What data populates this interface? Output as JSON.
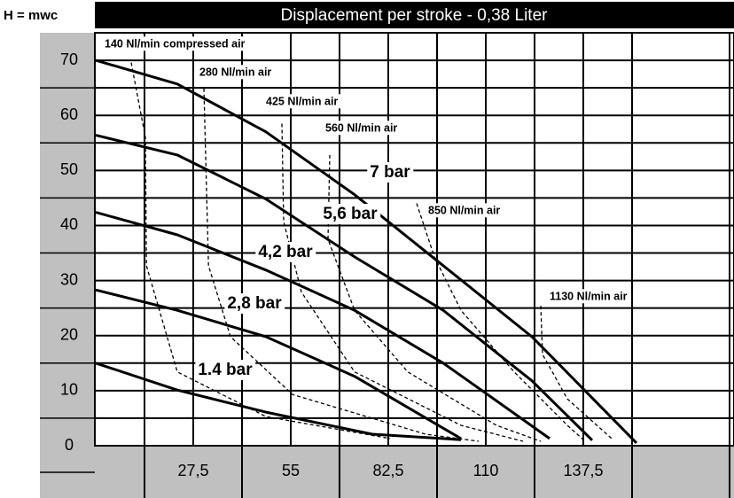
{
  "chart_data": {
    "type": "line",
    "title": "Displacement per stroke - 0,38 Liter",
    "y_label": "H = mwc",
    "xlim": [
      0,
      180
    ],
    "ylim": [
      0,
      75
    ],
    "xticks": [
      {
        "value": 27.5,
        "label": "27,5"
      },
      55,
      {
        "value": 82.5,
        "label": "82,5"
      },
      110,
      {
        "value": 137.5,
        "label": "137,5"
      }
    ],
    "yticks": [
      0,
      10,
      20,
      30,
      40,
      50,
      60,
      70
    ],
    "grid": true,
    "series": [
      {
        "name": "7 bar",
        "style": "solid",
        "color": "#000000",
        "x": [
          0,
          23,
          48,
          73,
          98,
          123,
          138,
          152.5
        ],
        "values": [
          70,
          65.7,
          57,
          45.6,
          32.7,
          19.8,
          10,
          0.5
        ]
      },
      {
        "name": "5,6 bar",
        "style": "solid",
        "color": "#000000",
        "x": [
          0,
          23,
          48,
          73,
          98,
          123,
          140
        ],
        "values": [
          56.4,
          52.8,
          44.8,
          34.3,
          24.6,
          11.8,
          1
        ]
      },
      {
        "name": "4,2 bar",
        "style": "solid",
        "color": "#000000",
        "x": [
          0,
          23,
          48,
          73,
          98,
          128
        ],
        "values": [
          42.4,
          38.3,
          31.9,
          24.6,
          15,
          1.3
        ]
      },
      {
        "name": "2,8 bar",
        "style": "solid",
        "color": "#000000",
        "x": [
          0,
          23,
          48,
          73,
          103
        ],
        "values": [
          28.3,
          24.6,
          19.8,
          12.6,
          1.3
        ]
      },
      {
        "name": "1.4 bar",
        "style": "solid",
        "color": "#000000",
        "x": [
          0,
          23,
          48,
          78,
          103
        ],
        "values": [
          15,
          10.1,
          6.1,
          2.1,
          1.1
        ]
      },
      {
        "name": "140 Nl/min compressed air",
        "style": "dashed",
        "color": "#000000",
        "x": [
          10,
          14,
          14.3,
          23,
          48,
          83
        ],
        "values": [
          69.6,
          56,
          32.7,
          13.4,
          5.3,
          1.3
        ]
      },
      {
        "name": "280 Nl/min air",
        "style": "dashed",
        "color": "#000000",
        "x": [
          30.5,
          31.8,
          38,
          55.5,
          93,
          108
        ],
        "values": [
          64.9,
          32.7,
          19.8,
          9.3,
          2.1,
          0.8
        ]
      },
      {
        "name": "425 Nl/min air",
        "style": "dashed",
        "color": "#000000",
        "x": [
          52.5,
          53,
          58,
          73,
          103,
          120.5
        ],
        "values": [
          58.5,
          40.7,
          27.9,
          13.4,
          3.7,
          0.8
        ]
      },
      {
        "name": "560 Nl/min air",
        "style": "dashed",
        "color": "#000000",
        "x": [
          66,
          65.5,
          73,
          88,
          113,
          125.5
        ],
        "values": [
          52.8,
          37.5,
          24.6,
          13.4,
          3.7,
          0.8
        ]
      },
      {
        "name": "850 Nl/min air",
        "style": "dashed",
        "color": "#000000",
        "x": [
          90.5,
          95.5,
          103,
          118,
          133,
          138
        ],
        "values": [
          44,
          34.3,
          24.6,
          13.4,
          3.7,
          0.8
        ]
      },
      {
        "name": "1130 Nl/min air",
        "style": "dashed",
        "color": "#000000",
        "x": [
          125.5,
          126,
          133,
          145.5
        ],
        "values": [
          25.4,
          16.6,
          8.5,
          1.3
        ]
      }
    ]
  }
}
